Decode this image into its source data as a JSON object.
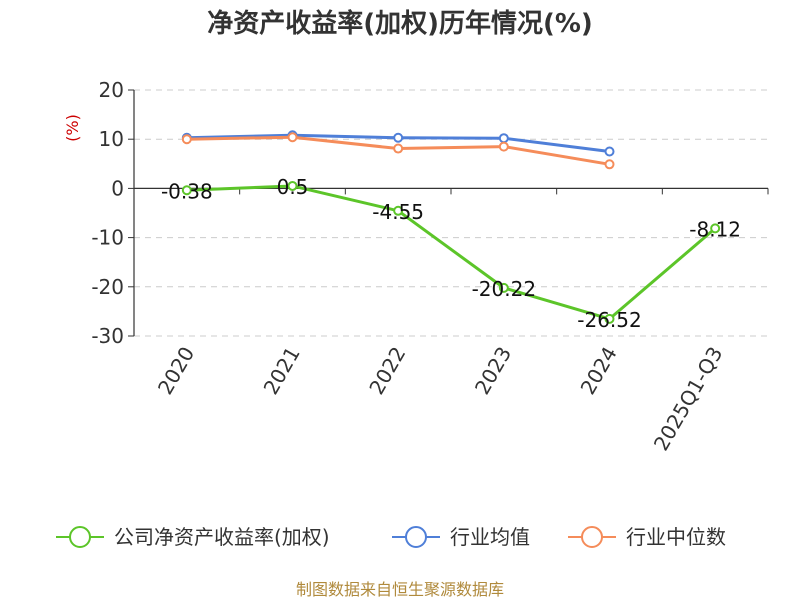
{
  "chart_data": {
    "type": "line",
    "title": "净资产收益率(加权)历年情况(%)",
    "ylabel": "(%)",
    "xlabel": "",
    "categories": [
      "2020",
      "2021",
      "2022",
      "2023",
      "2024",
      "2025Q1-Q3"
    ],
    "ylim": [
      -30,
      20
    ],
    "yticks": [
      20,
      10,
      0,
      -10,
      -20,
      -30
    ],
    "grid": true,
    "legend_position": "bottom",
    "series": [
      {
        "name": "公司净资产收益率(加权)",
        "color": "#5cc529",
        "values": [
          -0.38,
          0.5,
          -4.55,
          -20.22,
          -26.52,
          -8.12
        ],
        "labels": [
          "-0.38",
          "0.5",
          "-4.55",
          "-20.22",
          "-26.52",
          "-8.12"
        ]
      },
      {
        "name": "行业均值",
        "color": "#4f7fd8",
        "values": [
          10.3,
          10.8,
          10.3,
          10.2,
          7.5,
          null
        ]
      },
      {
        "name": "行业中位数",
        "color": "#f58c5a",
        "values": [
          10.0,
          10.4,
          8.1,
          8.5,
          4.9,
          null
        ]
      }
    ],
    "source": "制图数据来自恒生聚源数据库"
  }
}
